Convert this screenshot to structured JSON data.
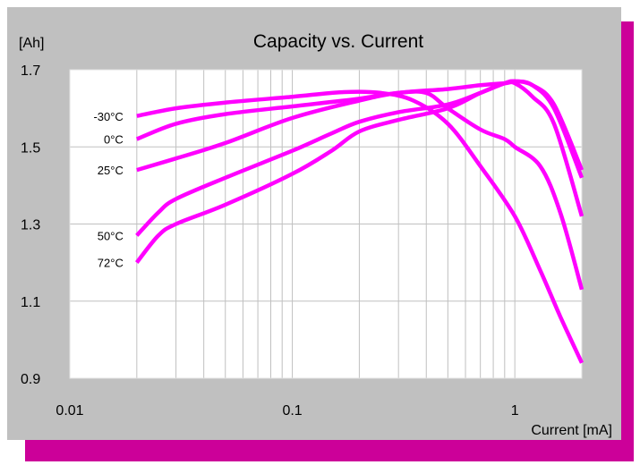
{
  "colors": {
    "background": "#c0c0c0",
    "plot_background": "#ffffff",
    "shadow": "#cc0099",
    "series": "#ff00ff",
    "grid": "#c0c0c0"
  },
  "chart_data": {
    "type": "line",
    "title": "Capacity vs. Current",
    "xlabel": "Current [mA]",
    "ylabel": "[Ah]",
    "x_scale": "log",
    "xlim": [
      0.01,
      2
    ],
    "ylim": [
      0.9,
      1.7
    ],
    "x_ticks": [
      {
        "value": 0.01,
        "label": "0.01"
      },
      {
        "value": 0.1,
        "label": "0.1"
      },
      {
        "value": 1,
        "label": "1"
      }
    ],
    "y_ticks": [
      {
        "value": 0.9,
        "label": "0.9"
      },
      {
        "value": 1.1,
        "label": "1.1"
      },
      {
        "value": 1.3,
        "label": "1.3"
      },
      {
        "value": 1.5,
        "label": "1.5"
      },
      {
        "value": 1.7,
        "label": "1.7"
      }
    ],
    "grid": true,
    "legend": "inline-left",
    "series": [
      {
        "name": "-30°C",
        "x": [
          0.02,
          0.03,
          0.05,
          0.1,
          0.17,
          0.25,
          0.35,
          0.5,
          0.7,
          1.0,
          1.3,
          1.6,
          2.0
        ],
        "y": [
          1.58,
          1.6,
          1.615,
          1.63,
          1.642,
          1.64,
          1.62,
          1.56,
          1.45,
          1.32,
          1.18,
          1.06,
          0.94
        ]
      },
      {
        "name": "0°C",
        "x": [
          0.02,
          0.03,
          0.05,
          0.1,
          0.2,
          0.3,
          0.4,
          0.5,
          0.7,
          0.9,
          1.0,
          1.3,
          1.6,
          2.0
        ],
        "y": [
          1.52,
          1.56,
          1.585,
          1.605,
          1.625,
          1.64,
          1.64,
          1.6,
          1.545,
          1.52,
          1.5,
          1.45,
          1.33,
          1.13
        ]
      },
      {
        "name": "25°C",
        "x": [
          0.02,
          0.03,
          0.05,
          0.1,
          0.2,
          0.3,
          0.5,
          0.7,
          0.9,
          1.0,
          1.2,
          1.5,
          2.0
        ],
        "y": [
          1.44,
          1.47,
          1.51,
          1.575,
          1.62,
          1.64,
          1.65,
          1.66,
          1.665,
          1.665,
          1.63,
          1.56,
          1.32
        ]
      },
      {
        "name": "50°C",
        "x": [
          0.02,
          0.025,
          0.03,
          0.05,
          0.1,
          0.15,
          0.2,
          0.3,
          0.5,
          0.7,
          0.9,
          1.0,
          1.2,
          1.5,
          2.0
        ],
        "y": [
          1.27,
          1.33,
          1.365,
          1.42,
          1.49,
          1.535,
          1.565,
          1.59,
          1.61,
          1.64,
          1.665,
          1.67,
          1.66,
          1.6,
          1.42
        ]
      },
      {
        "name": "72°C",
        "x": [
          0.02,
          0.025,
          0.03,
          0.05,
          0.1,
          0.15,
          0.2,
          0.3,
          0.5,
          0.7,
          0.9,
          1.0,
          1.2,
          1.5,
          2.0
        ],
        "y": [
          1.2,
          1.27,
          1.3,
          1.35,
          1.43,
          1.49,
          1.54,
          1.57,
          1.6,
          1.64,
          1.665,
          1.67,
          1.66,
          1.61,
          1.44
        ]
      }
    ]
  }
}
